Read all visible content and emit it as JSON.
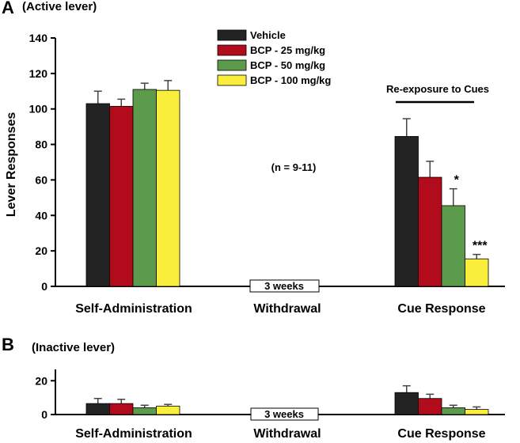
{
  "panel_a": {
    "letter": "A",
    "title": "(Active lever)",
    "ylabel": "Lever Responses",
    "n_note": "(n = 9-11)",
    "reexposure_label": "Re-exposure to Cues",
    "withdrawal_box": "3 weeks"
  },
  "panel_b": {
    "letter": "B",
    "title": "(Inactive lever)",
    "withdrawal_box": "3 weeks"
  },
  "chart_data": [
    {
      "type": "bar",
      "title": "(Active lever)",
      "xlabel": "",
      "ylabel": "Lever Responses",
      "ylim": [
        0,
        140
      ],
      "yticks": [
        "0",
        "20",
        "40",
        "60",
        "80",
        "100",
        "120",
        "140"
      ],
      "categories": [
        "Self-Administration",
        "Withdrawal",
        "Cue Response"
      ],
      "legend_position": "top-center",
      "series": [
        {
          "name": "Vehicle",
          "color": "#232323",
          "values": [
            103,
            null,
            84.5
          ],
          "errors": [
            7,
            null,
            10
          ]
        },
        {
          "name": "BCP - 25 mg/kg",
          "color": "#b20b1c",
          "values": [
            101.5,
            null,
            61.5
          ],
          "errors": [
            4,
            null,
            9
          ]
        },
        {
          "name": "BCP - 50 mg/kg",
          "color": "#5c9a4c",
          "values": [
            111,
            null,
            45.5
          ],
          "errors": [
            3.5,
            null,
            9.5
          ]
        },
        {
          "name": "BCP - 100 mg/kg",
          "color": "#f9ee3c",
          "values": [
            110.5,
            null,
            15.5
          ],
          "errors": [
            5.5,
            null,
            2.5
          ]
        }
      ],
      "significance": [
        {
          "category": "Cue Response",
          "series": "BCP - 50 mg/kg",
          "label": "*"
        },
        {
          "category": "Cue Response",
          "series": "BCP - 100 mg/kg",
          "label": "***"
        }
      ]
    },
    {
      "type": "bar",
      "title": "(Inactive lever)",
      "xlabel": "",
      "ylabel": "",
      "ylim": [
        0,
        22
      ],
      "yticks": [
        "0",
        "20"
      ],
      "categories": [
        "Self-Administration",
        "Withdrawal",
        "Cue Response"
      ],
      "series": [
        {
          "name": "Vehicle",
          "color": "#232323",
          "values": [
            6.5,
            null,
            13
          ],
          "errors": [
            3,
            null,
            4
          ]
        },
        {
          "name": "BCP - 25 mg/kg",
          "color": "#b20b1c",
          "values": [
            6.5,
            null,
            9.5
          ],
          "errors": [
            2.5,
            null,
            2.5
          ]
        },
        {
          "name": "BCP - 50 mg/kg",
          "color": "#5c9a4c",
          "values": [
            4,
            null,
            4
          ],
          "errors": [
            1.5,
            null,
            1.5
          ]
        },
        {
          "name": "BCP - 100 mg/kg",
          "color": "#f9ee3c",
          "values": [
            5,
            null,
            3
          ],
          "errors": [
            1,
            null,
            1.5
          ]
        }
      ]
    }
  ]
}
